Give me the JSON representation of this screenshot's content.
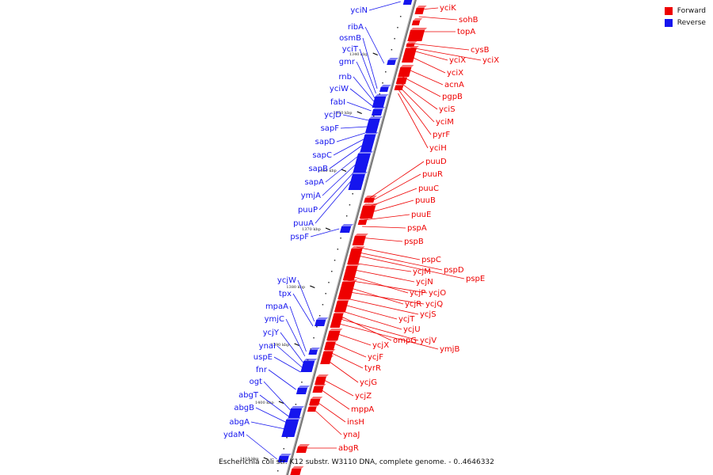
{
  "legend": {
    "items": [
      {
        "label": "Forward",
        "color": "#ee0000"
      },
      {
        "label": "Reverse",
        "color": "#1515ee"
      }
    ]
  },
  "caption": "Escherichia coli str. K12 substr. W3110 DNA, complete genome. - 0..4646332",
  "genome_map": {
    "forward_color": "#ee0000",
    "reverse_color": "#1515ee",
    "ticks": [
      "1340 kbp",
      "1350 kbp",
      "1360 kbp",
      "1370 kbp",
      "1380 kbp",
      "1390 kbp",
      "1400 kbp",
      "1410 kbp"
    ],
    "forward_genes": [
      "yciK",
      "sohB",
      "topA",
      "cysB",
      "yciX",
      "yciX",
      "yciX",
      "acnA",
      "pgpB",
      "yciS",
      "yciM",
      "pyrF",
      "yciH",
      "puuD",
      "puuR",
      "puuC",
      "puuB",
      "puuE",
      "pspA",
      "pspB",
      "pspC",
      "pspD",
      "pspE",
      "ycjM",
      "ycjN",
      "ycjP",
      "ycjO",
      "ycjR",
      "ycjQ",
      "ycjS",
      "ycjT",
      "ycjU",
      "ompG",
      "ycjV",
      "ymjB",
      "ycjX",
      "ycjF",
      "tyrR",
      "ycjG",
      "ycjZ",
      "mppA",
      "insH",
      "ynaJ",
      "abgR"
    ],
    "reverse_genes": [
      "yciN",
      "ribA",
      "osmB",
      "yciT",
      "gmr",
      "rnb",
      "yciW",
      "fabI",
      "ycjD",
      "sapF",
      "sapD",
      "sapC",
      "sapB",
      "sapA",
      "ymjA",
      "puuP",
      "puuA",
      "pspF",
      "ycjW",
      "tpx",
      "mpaA",
      "ymjC",
      "ycjY",
      "ynaI",
      "uspE",
      "fnr",
      "ogt",
      "abgT",
      "abgB",
      "abgA",
      "ydaM"
    ]
  }
}
